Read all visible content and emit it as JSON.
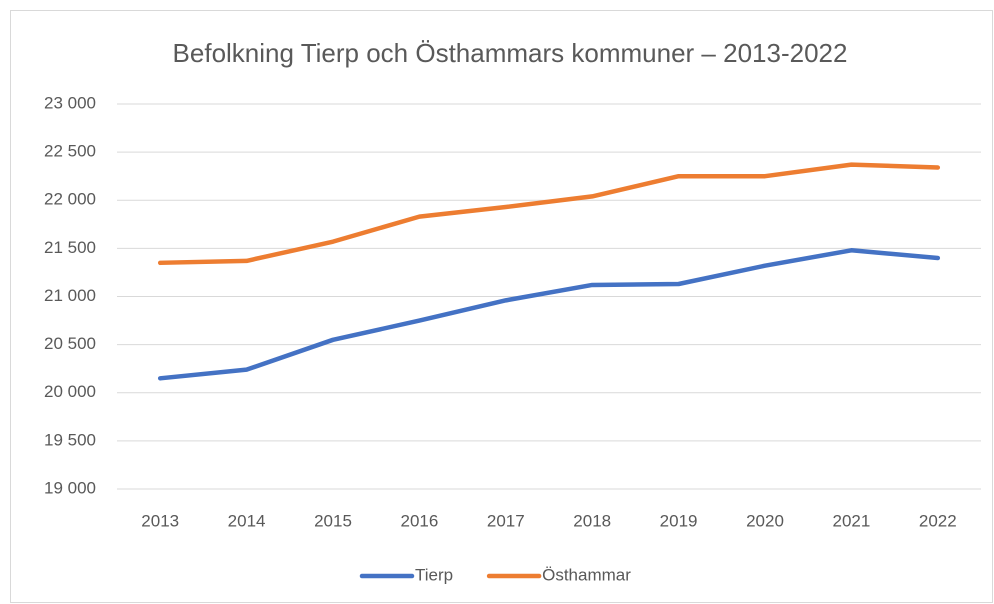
{
  "chart_data": {
    "type": "line",
    "title": "Befolkning Tierp och Östhammars kommuner – 2013-2022",
    "categories": [
      "2013",
      "2014",
      "2015",
      "2016",
      "2017",
      "2018",
      "2019",
      "2020",
      "2021",
      "2022"
    ],
    "series": [
      {
        "name": "Tierp",
        "color": "#4472c4",
        "values": [
          20150,
          20240,
          20550,
          20750,
          20960,
          21120,
          21130,
          21320,
          21480,
          21400
        ]
      },
      {
        "name": "Östhammar",
        "color": "#ed7d31",
        "values": [
          21350,
          21370,
          21570,
          21830,
          21930,
          22040,
          22250,
          22250,
          22370,
          22340
        ]
      }
    ],
    "ylim": [
      19000,
      23000
    ],
    "yticks": [
      {
        "value": 19000,
        "label": "19 000"
      },
      {
        "value": 19500,
        "label": "19 500"
      },
      {
        "value": 20000,
        "label": "20 000"
      },
      {
        "value": 20500,
        "label": "20 500"
      },
      {
        "value": 21000,
        "label": "21 000"
      },
      {
        "value": 21500,
        "label": "21 500"
      },
      {
        "value": 22000,
        "label": "22 000"
      },
      {
        "value": 22500,
        "label": "22 500"
      },
      {
        "value": 23000,
        "label": "23 000"
      }
    ],
    "grid": true,
    "legend": "bottom"
  }
}
